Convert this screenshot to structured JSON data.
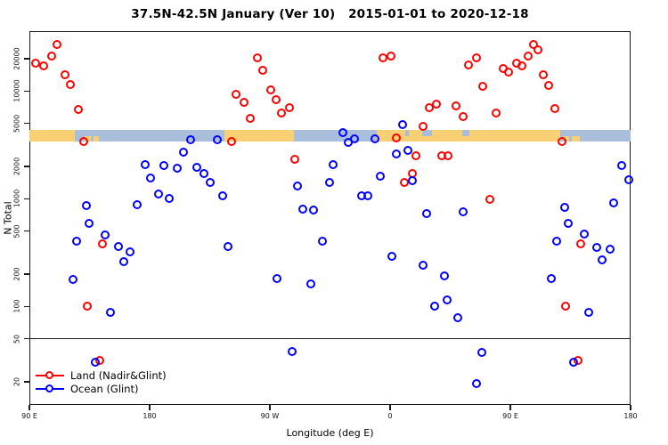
{
  "title": "37.5N-42.5N January (Ver 10)   2015-01-01 to 2020-12-18",
  "axes": {
    "y": {
      "label": "N Total",
      "scale": "log",
      "ticks": [
        {
          "v": 20000,
          "label": "20000"
        },
        {
          "v": 10000,
          "label": "10000"
        },
        {
          "v": 5000,
          "label": "5000"
        },
        {
          "v": 2000,
          "label": "2000"
        },
        {
          "v": 1000,
          "label": "1000"
        },
        {
          "v": 500,
          "label": "500"
        },
        {
          "v": 200,
          "label": "200"
        },
        {
          "v": 100,
          "label": "100"
        },
        {
          "v": 50,
          "label": "50"
        },
        {
          "v": 20,
          "label": "20"
        }
      ]
    },
    "x": {
      "label": "Longitude (deg E)",
      "ticks": [
        {
          "lon": 90,
          "label": "90 E"
        },
        {
          "lon": 180,
          "label": "180"
        },
        {
          "lon": 270,
          "label": "90 W"
        },
        {
          "lon": 360,
          "label": "0"
        },
        {
          "lon": 450,
          "label": "90 E"
        },
        {
          "lon": 540,
          "label": "180"
        }
      ]
    }
  },
  "reference_line": {
    "value": 50
  },
  "map_band": {
    "name": "land-ocean strip at N ~ 3500-4400",
    "land_color": "#F9CF74",
    "ocean_color": "#A9BEDA",
    "segments": [
      {
        "from": 90,
        "to": 124,
        "type": "land"
      },
      {
        "from": 124,
        "to": 236,
        "type": "ocean"
      },
      {
        "from": 236,
        "to": 288,
        "type": "land"
      },
      {
        "from": 288,
        "to": 350,
        "type": "ocean"
      },
      {
        "from": 350,
        "to": 487,
        "type": "land"
      },
      {
        "from": 487,
        "to": 540,
        "type": "ocean"
      }
    ],
    "patches": [
      {
        "from": 131,
        "to": 136,
        "type": "land",
        "pos": "bottom"
      },
      {
        "from": 138,
        "to": 142,
        "type": "land",
        "pos": "bottom"
      },
      {
        "from": 371,
        "to": 374,
        "type": "ocean",
        "pos": "top"
      },
      {
        "from": 384,
        "to": 391,
        "type": "ocean",
        "pos": "top"
      },
      {
        "from": 414,
        "to": 419,
        "type": "ocean",
        "pos": "top"
      },
      {
        "from": 490,
        "to": 494,
        "type": "land",
        "pos": "bottom"
      },
      {
        "from": 496,
        "to": 502,
        "type": "land",
        "pos": "bottom"
      }
    ]
  },
  "legend": {
    "items": [
      {
        "label": "Land (Nadir&Glint)",
        "color": "#FF0000"
      },
      {
        "label": "Ocean (Glint)",
        "color": "#0000FF"
      }
    ]
  },
  "chart_data": {
    "type": "scatter",
    "title": "37.5N-42.5N January (Ver 10)   2015-01-01 to 2020-12-18",
    "xlabel": "Longitude (deg E)",
    "ylabel": "N Total",
    "x_axis": {
      "min": 90,
      "max": 540,
      "note": "longitude increases eastward from 90E and wraps past 180 through 90W, 0, 90E to 180"
    },
    "y_axis": {
      "scale": "log",
      "min": 12,
      "max": 36000
    },
    "series": [
      {
        "name": "Land (Nadir&Glint)",
        "color": "#FF0000",
        "points": [
          [
            111,
            27000
          ],
          [
            107,
            21000
          ],
          [
            95,
            18000
          ],
          [
            101,
            17000
          ],
          [
            117,
            14000
          ],
          [
            121,
            11300
          ],
          [
            127,
            6650
          ],
          [
            131,
            3400
          ],
          [
            261,
            20000
          ],
          [
            265,
            15300
          ],
          [
            271,
            10100
          ],
          [
            275,
            8200
          ],
          [
            285,
            6900
          ],
          [
            279,
            6170
          ],
          [
            245,
            9200
          ],
          [
            251,
            7750
          ],
          [
            256,
            5500
          ],
          [
            242,
            3360
          ],
          [
            289,
            2290
          ],
          [
            355,
            20000
          ],
          [
            361,
            21000
          ],
          [
            419,
            17200
          ],
          [
            425,
            20000
          ],
          [
            430,
            10900
          ],
          [
            390,
            6900
          ],
          [
            395,
            7450
          ],
          [
            410,
            7200
          ],
          [
            415,
            5700
          ],
          [
            385,
            4670
          ],
          [
            365,
            3620
          ],
          [
            380,
            2480
          ],
          [
            399,
            2480
          ],
          [
            404,
            2480
          ],
          [
            377,
            1690
          ],
          [
            371,
            1400
          ],
          [
            468,
            27000
          ],
          [
            471,
            24000
          ],
          [
            464,
            21000
          ],
          [
            455,
            18000
          ],
          [
            459,
            17000
          ],
          [
            445,
            16000
          ],
          [
            449,
            15000
          ],
          [
            475,
            14000
          ],
          [
            479,
            11200
          ],
          [
            484,
            6800
          ],
          [
            440,
            6200
          ],
          [
            489,
            3400
          ],
          [
            435,
            970
          ],
          [
            145,
            380
          ],
          [
            134,
            100
          ],
          [
            143,
            31
          ],
          [
            503,
            380
          ],
          [
            492,
            100
          ],
          [
            501,
            31
          ]
        ]
      },
      {
        "name": "Ocean (Glint)",
        "color": "#0000FF",
        "points": [
          [
            177,
            2050
          ],
          [
            191,
            2000
          ],
          [
            206,
            2700
          ],
          [
            201,
            1900
          ],
          [
            181,
            1550
          ],
          [
            187,
            1100
          ],
          [
            195,
            1000
          ],
          [
            171,
            880
          ],
          [
            133,
            850
          ],
          [
            211,
            3500
          ],
          [
            231,
            3500
          ],
          [
            216,
            1950
          ],
          [
            221,
            1700
          ],
          [
            226,
            1400
          ],
          [
            235,
            1050
          ],
          [
            291,
            1300
          ],
          [
            295,
            800
          ],
          [
            303,
            780
          ],
          [
            318,
            2050
          ],
          [
            315,
            1400
          ],
          [
            370,
            4800
          ],
          [
            325,
            4100
          ],
          [
            334,
            3600
          ],
          [
            329,
            3300
          ],
          [
            349,
            3600
          ],
          [
            365,
            2600
          ],
          [
            374,
            2800
          ],
          [
            353,
            1600
          ],
          [
            377,
            1450
          ],
          [
            339,
            1050
          ],
          [
            344,
            1050
          ],
          [
            388,
            720
          ],
          [
            415,
            750
          ],
          [
            534,
            2000
          ],
          [
            539,
            1500
          ],
          [
            491,
            830
          ],
          [
            528,
            900
          ],
          [
            135,
            590
          ],
          [
            147,
            460
          ],
          [
            126,
            400
          ],
          [
            157,
            360
          ],
          [
            166,
            320
          ],
          [
            161,
            260
          ],
          [
            123,
            175
          ],
          [
            151,
            87
          ],
          [
            140,
            30
          ],
          [
            239,
            360
          ],
          [
            310,
            400
          ],
          [
            276,
            180
          ],
          [
            301,
            160
          ],
          [
            287,
            38
          ],
          [
            362,
            290
          ],
          [
            385,
            240
          ],
          [
            401,
            190
          ],
          [
            394,
            100
          ],
          [
            403,
            113
          ],
          [
            411,
            78
          ],
          [
            429,
            37
          ],
          [
            425,
            19
          ],
          [
            494,
            590
          ],
          [
            485,
            400
          ],
          [
            506,
            470
          ],
          [
            515,
            350
          ],
          [
            525,
            340
          ],
          [
            519,
            270
          ],
          [
            481,
            180
          ],
          [
            509,
            88
          ],
          [
            498,
            30
          ]
        ]
      }
    ]
  }
}
